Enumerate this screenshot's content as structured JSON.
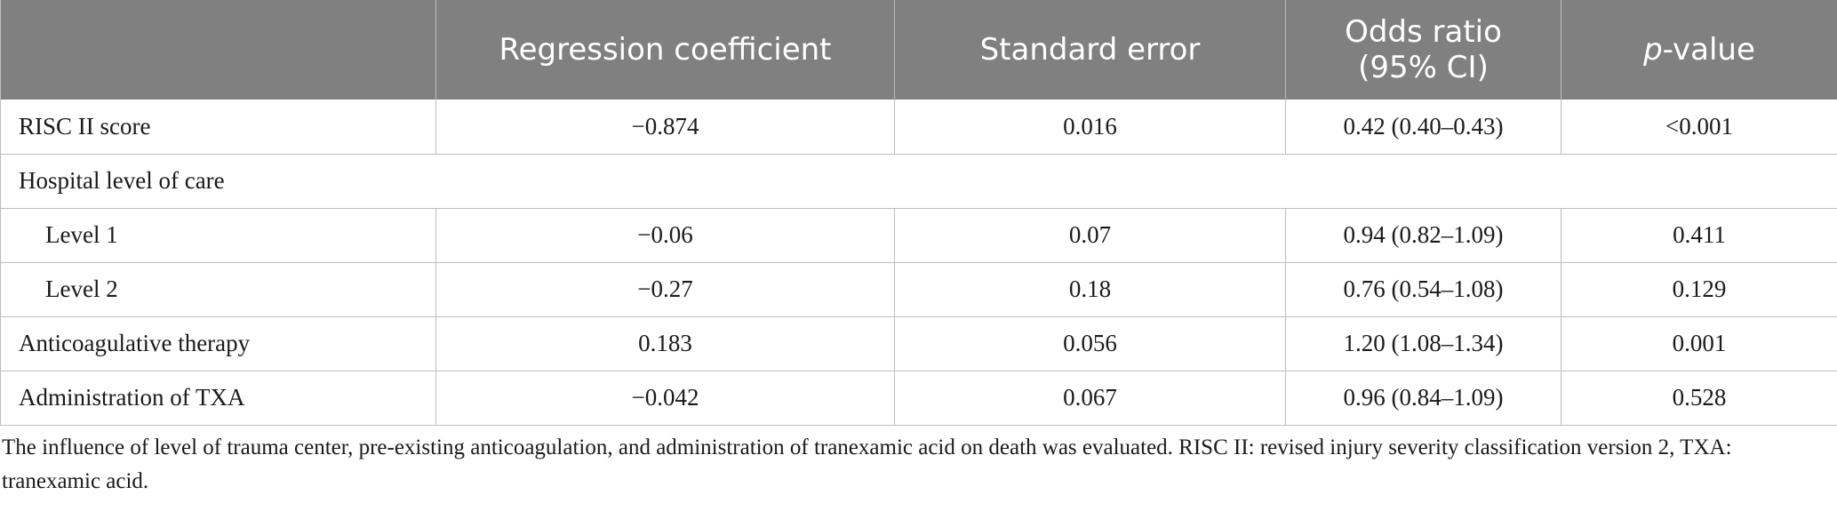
{
  "table": {
    "headers": [
      {
        "text": "",
        "italic_prefix": ""
      },
      {
        "text": "Regression coefficient",
        "italic_prefix": ""
      },
      {
        "text": "Standard error",
        "italic_prefix": ""
      },
      {
        "line1": "Odds ratio",
        "line2": "(95% CI)"
      },
      {
        "italic_prefix": "p",
        "text": "-value"
      }
    ],
    "rows": [
      {
        "label": "RISC II score",
        "coef": "−0.874",
        "se": "0.016",
        "or": "0.42 (0.40–0.43)",
        "p": "<0.001"
      },
      {
        "label": "Hospital level of care"
      },
      {
        "label": "Level 1",
        "coef": "−0.06",
        "se": "0.07",
        "or": "0.94 (0.82–1.09)",
        "p": "0.411"
      },
      {
        "label": "Level 2",
        "coef": "−0.27",
        "se": "0.18",
        "or": "0.76 (0.54–1.08)",
        "p": "0.129"
      },
      {
        "label": "Anticoagulative therapy",
        "coef": "0.183",
        "se": "0.056",
        "or": "1.20 (1.08–1.34)",
        "p": "0.001"
      },
      {
        "label": "Administration of TXA",
        "coef": "−0.042",
        "se": "0.067",
        "or": "0.96 (0.84–1.09)",
        "p": "0.528"
      }
    ]
  },
  "footnote": "The influence of level of trauma center, pre-existing anticoagulation, and administration of tranexamic acid on death was evaluated. RISC II: revised injury severity classification version 2, TXA: tranexamic acid.",
  "colors": {
    "header_bg": "#808080",
    "header_text": "#ffffff",
    "rule": "#bdbdbd"
  }
}
